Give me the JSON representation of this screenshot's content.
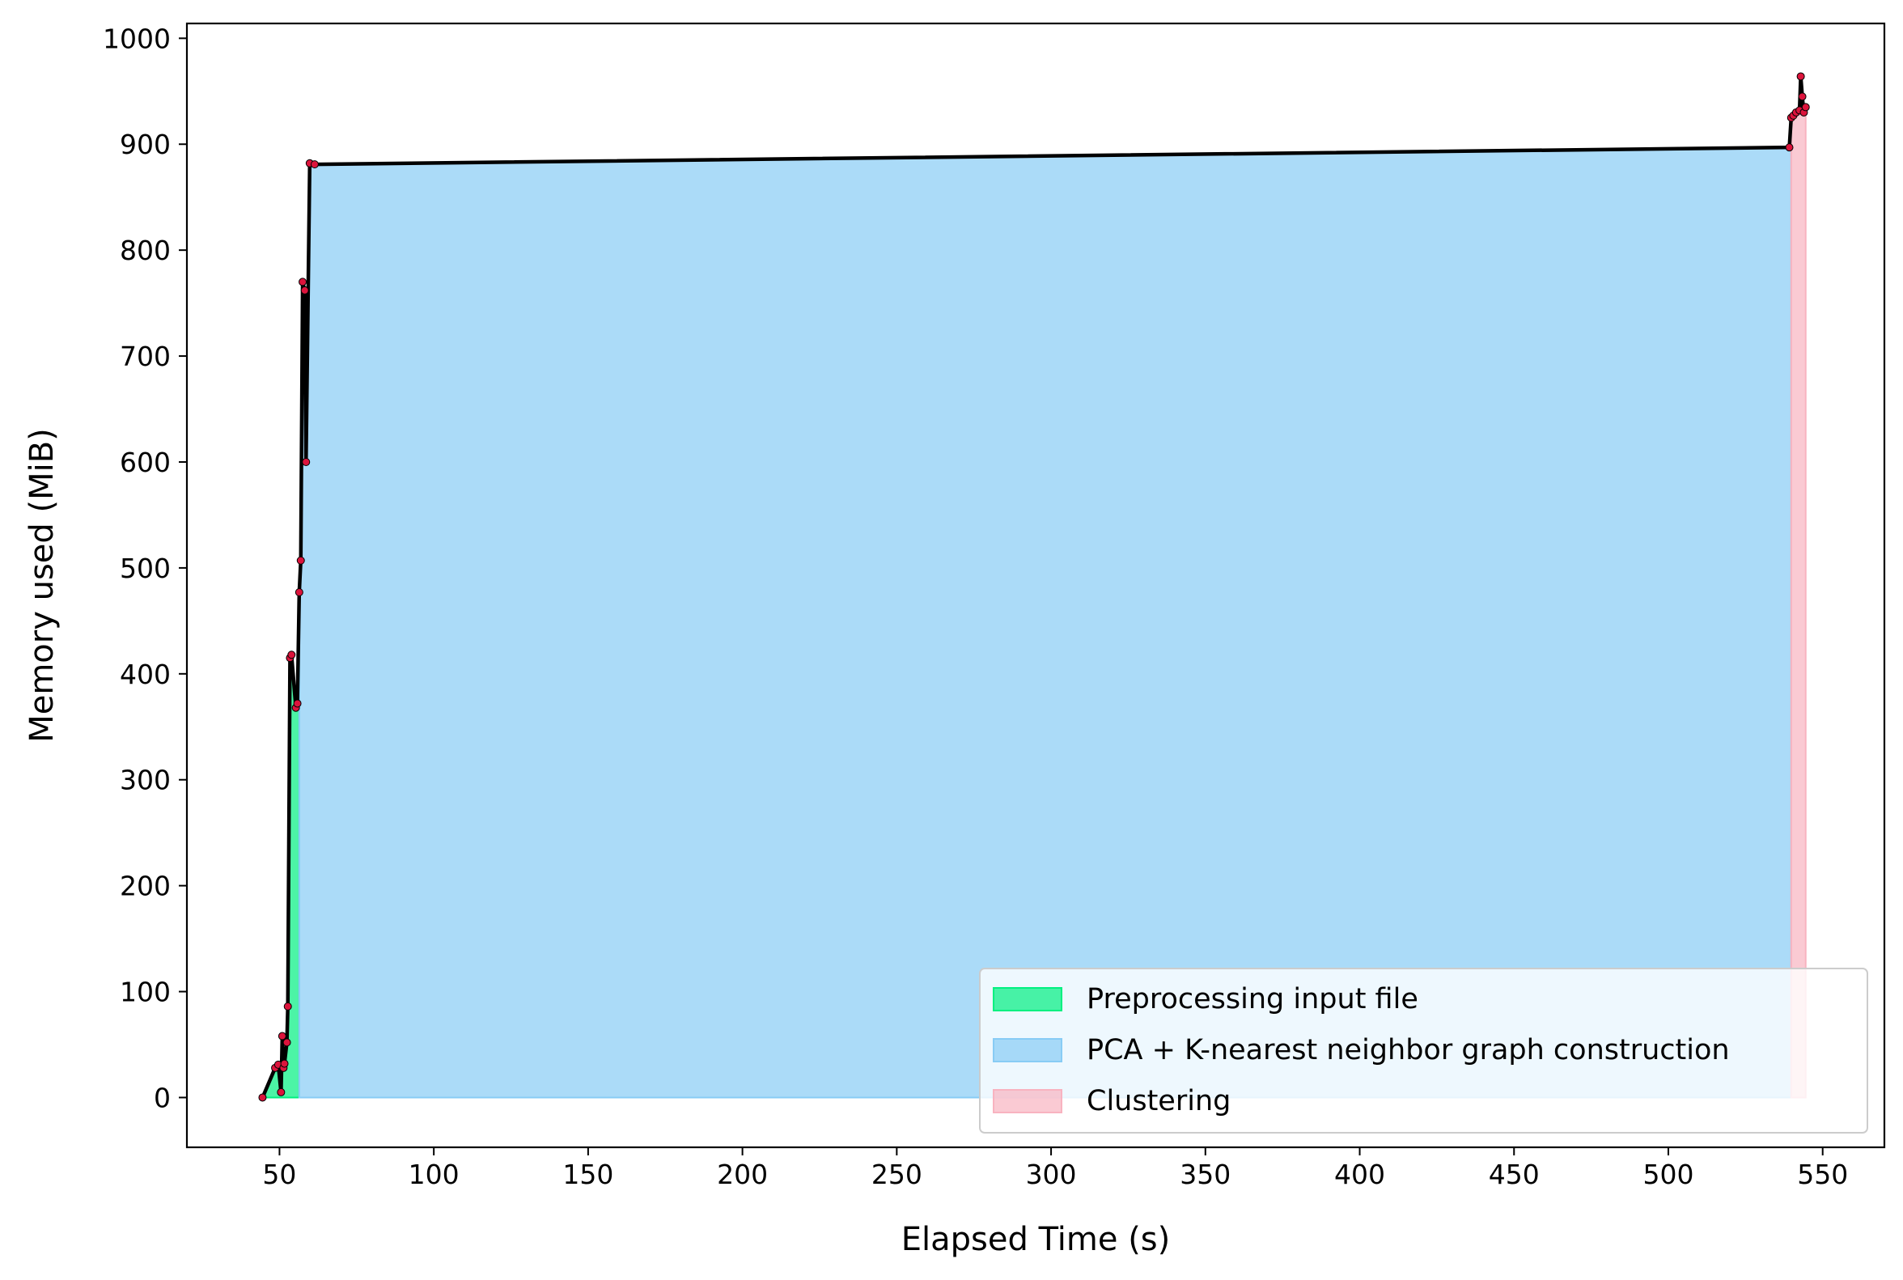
{
  "chart_data": {
    "type": "area",
    "title": "",
    "xlabel": "Elapsed Time (s)",
    "ylabel": "Memory used (MiB)",
    "xlim": [
      20,
      570
    ],
    "ylim": [
      -47,
      1014
    ],
    "xticks": [
      50,
      100,
      150,
      200,
      250,
      300,
      350,
      400,
      450,
      500,
      550
    ],
    "yticks": [
      0,
      100,
      200,
      300,
      400,
      500,
      600,
      700,
      800,
      900,
      1000
    ],
    "grid": false,
    "legend_position": "lower-right",
    "line_color": "#000000",
    "marker_color": "#dc143c",
    "phases": [
      {
        "name": "Preprocessing input file",
        "color": "#00f080",
        "x_start": 44.5,
        "x_end": 56.4
      },
      {
        "name": "PCA + K-nearest neighbor graph construction",
        "color": "#88ccf5",
        "x_start": 56.4,
        "x_end": 539.8
      },
      {
        "name": "Clustering",
        "color": "#f8b3c0",
        "x_start": 539.8,
        "x_end": 544.5
      }
    ],
    "x": [
      44.5,
      48.6,
      49.6,
      50.5,
      50.9,
      51.3,
      51.6,
      52.4,
      52.7,
      53.4,
      53.9,
      55.3,
      55.8,
      56.4,
      56.9,
      57.5,
      58.2,
      58.6,
      59.8,
      61.4,
      539.2,
      539.8,
      540.5,
      541.4,
      542.5,
      542.9,
      543.4,
      543.9,
      544.5
    ],
    "y": [
      0,
      28,
      31,
      5,
      58,
      28,
      32,
      52,
      86,
      415,
      418,
      368,
      372,
      477,
      507,
      770,
      762,
      600,
      882,
      881,
      897,
      925,
      927,
      930,
      932,
      964,
      945,
      930,
      935
    ]
  },
  "legend": {
    "items": [
      {
        "label": "Preprocessing input file"
      },
      {
        "label": "PCA + K-nearest neighbor graph construction"
      },
      {
        "label": "Clustering"
      }
    ]
  }
}
